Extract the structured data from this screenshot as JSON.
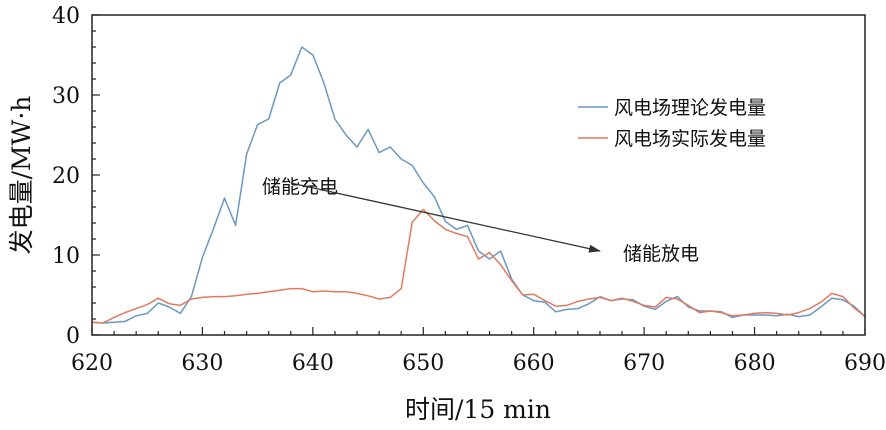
{
  "chart_data": {
    "type": "line",
    "xlabel": "时间/15 min",
    "ylabel": "发电量/MW·h",
    "xlim": [
      620,
      690
    ],
    "ylim": [
      0,
      40
    ],
    "xticks": [
      "620",
      "630",
      "640",
      "650",
      "660",
      "670",
      "680",
      "690"
    ],
    "yticks": [
      "0",
      "10",
      "20",
      "30",
      "40"
    ],
    "grid": false,
    "legend_position": "right",
    "series": [
      {
        "name": "风电场理论发电量",
        "color": "#6b98c0",
        "x": [
          620,
          621,
          622,
          623,
          624,
          625,
          626,
          627,
          628,
          629,
          630,
          631,
          632,
          633,
          634,
          635,
          636,
          637,
          638,
          639,
          640,
          641,
          642,
          643,
          644,
          645,
          646,
          647,
          648,
          649,
          650,
          651,
          652,
          653,
          654,
          655,
          656,
          657,
          658,
          659,
          660,
          661,
          662,
          663,
          664,
          665,
          666,
          667,
          668,
          669,
          670,
          671,
          672,
          673,
          674,
          675,
          676,
          677,
          678,
          679,
          680,
          681,
          682,
          683,
          684,
          685,
          686,
          687,
          688,
          689,
          690
        ],
        "y": [
          1.6,
          1.5,
          1.6,
          1.7,
          2.4,
          2.7,
          4.0,
          3.5,
          2.7,
          4.8,
          9.7,
          13.3,
          17.1,
          13.7,
          22.6,
          26.3,
          27.0,
          31.5,
          32.5,
          36.0,
          35.0,
          31.5,
          27.0,
          25.0,
          23.5,
          25.7,
          22.8,
          23.5,
          22.0,
          21.2,
          19.0,
          17.3,
          14.2,
          13.2,
          13.7,
          10.5,
          9.5,
          10.5,
          7.0,
          5.0,
          4.3,
          4.1,
          2.9,
          3.2,
          3.3,
          3.9,
          4.8,
          4.3,
          4.5,
          4.4,
          3.6,
          3.2,
          4.2,
          4.8,
          3.5,
          3.0,
          3.0,
          2.9,
          2.2,
          2.5,
          2.5,
          2.5,
          2.4,
          2.6,
          2.3,
          2.5,
          3.5,
          4.6,
          4.4,
          3.6,
          2.3
        ]
      },
      {
        "name": "风电场实际发电量",
        "color": "#e07b5f",
        "x": [
          620,
          621,
          622,
          623,
          624,
          625,
          626,
          627,
          628,
          629,
          630,
          631,
          632,
          633,
          634,
          635,
          636,
          637,
          638,
          639,
          640,
          641,
          642,
          643,
          644,
          645,
          646,
          647,
          648,
          649,
          650,
          651,
          652,
          653,
          654,
          655,
          656,
          657,
          658,
          659,
          660,
          661,
          662,
          663,
          664,
          665,
          666,
          667,
          668,
          669,
          670,
          671,
          672,
          673,
          674,
          675,
          676,
          677,
          678,
          679,
          680,
          681,
          682,
          683,
          684,
          685,
          686,
          687,
          688,
          689,
          690
        ],
        "y": [
          1.6,
          1.5,
          2.2,
          2.8,
          3.3,
          3.8,
          4.6,
          3.9,
          3.7,
          4.5,
          4.7,
          4.8,
          4.8,
          4.9,
          5.1,
          5.2,
          5.4,
          5.6,
          5.8,
          5.8,
          5.4,
          5.5,
          5.4,
          5.4,
          5.2,
          4.9,
          4.5,
          4.7,
          5.8,
          14.1,
          15.7,
          14.3,
          13.2,
          12.7,
          12.3,
          9.5,
          10.3,
          8.8,
          6.8,
          5.0,
          5.1,
          4.3,
          3.6,
          3.7,
          4.2,
          4.5,
          4.7,
          4.3,
          4.6,
          4.2,
          3.7,
          3.5,
          4.7,
          4.5,
          3.7,
          2.8,
          3.0,
          2.8,
          2.4,
          2.5,
          2.7,
          2.8,
          2.7,
          2.5,
          2.8,
          3.3,
          4.1,
          5.2,
          4.8,
          3.4,
          2.3
        ]
      }
    ],
    "annotations": [
      {
        "text": "储能充电",
        "from": [
          638,
          19
        ],
        "to": [
          666,
          10.5
        ]
      },
      {
        "text": "储能放电"
      }
    ]
  }
}
